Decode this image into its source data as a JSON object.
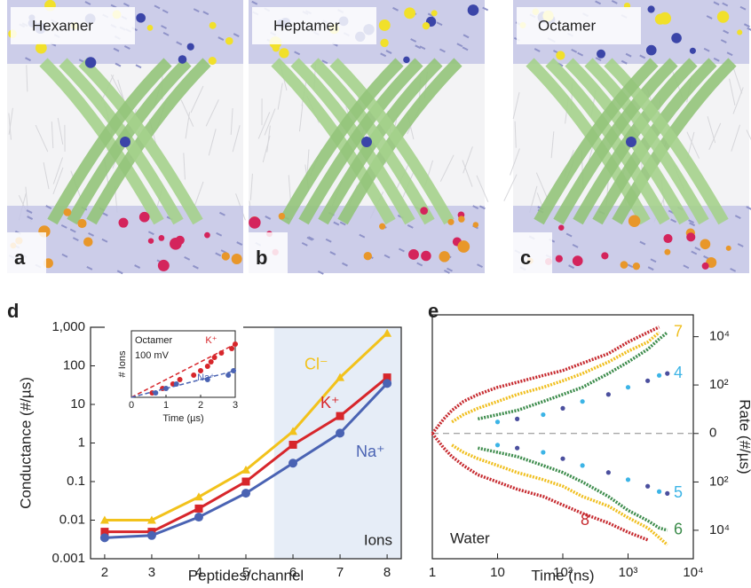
{
  "panels": [
    {
      "letter": "a",
      "label": "Hexamer"
    },
    {
      "letter": "b",
      "label": "Heptamer"
    },
    {
      "letter": "c",
      "label": "Octamer"
    }
  ],
  "chart_data": [
    {
      "type": "line",
      "panel_label": "d",
      "xlabel": "Peptides/channel",
      "ylabel": "Conductance (#/µs)",
      "x": [
        2,
        3,
        4,
        5,
        6,
        7,
        8
      ],
      "xlim": [
        1.7,
        8.3
      ],
      "xticks": [
        2,
        3,
        4,
        5,
        6,
        7,
        8
      ],
      "log_y": true,
      "ylim": [
        0.001,
        1000
      ],
      "yticks": [
        0.001,
        0.01,
        0.1,
        1,
        10,
        100,
        {
          "value": 1000,
          "label": "1,000"
        }
      ],
      "shade": {
        "from": 5.6,
        "label": "Ions",
        "color": "#e6edf7"
      },
      "series": [
        {
          "name": "Cl⁻",
          "color": "#f2c21b",
          "marker": "triangle",
          "values": [
            0.01,
            0.01,
            0.04,
            0.2,
            2,
            50,
            700
          ]
        },
        {
          "name": "K⁺",
          "color": "#d7262b",
          "marker": "square",
          "values": [
            0.005,
            0.005,
            0.02,
            0.1,
            0.9,
            5,
            50
          ]
        },
        {
          "name": "Na⁺",
          "color": "#4a63b3",
          "marker": "circle",
          "values": [
            0.0035,
            0.004,
            0.012,
            0.05,
            0.3,
            1.8,
            35
          ]
        }
      ]
    },
    {
      "type": "scatter",
      "title": [
        "Octamer",
        "100 mV"
      ],
      "xlabel": "Time (µs)",
      "ylabel": "# Ions",
      "xlim": [
        0,
        3
      ],
      "xticks": [
        0,
        1,
        2,
        3
      ],
      "ylim": [
        0,
        15
      ],
      "series": [
        {
          "name": "K⁺",
          "color": "#d7262b",
          "x": [
            0.6,
            0.9,
            1.2,
            1.4,
            1.8,
            2.0,
            2.2,
            2.3,
            2.4,
            2.6,
            2.9,
            3.0
          ],
          "y": [
            1,
            2,
            3,
            4,
            5,
            6,
            7,
            8,
            9,
            10,
            11,
            12
          ],
          "fit": {
            "x": [
              0,
              3
            ],
            "y": [
              0,
              12
            ]
          }
        },
        {
          "name": "Na⁺",
          "color": "#4a63b3",
          "x": [
            0.7,
            1.0,
            1.3,
            2.2,
            2.8,
            2.95
          ],
          "y": [
            1,
            2,
            3,
            4,
            5,
            6
          ],
          "fit": {
            "x": [
              0,
              3
            ],
            "y": [
              0,
              6
            ]
          }
        }
      ]
    },
    {
      "type": "line",
      "panel_label": "e",
      "xlabel": "Time (ns)",
      "ylabel": "Rate (#/µs)",
      "annotation": "Water",
      "log_x": true,
      "xlim": [
        1,
        10000
      ],
      "xticks": [
        1,
        10,
        {
          "value": 100,
          "label": "10²"
        },
        {
          "value": 1000,
          "label": "10³"
        },
        {
          "value": 10000,
          "label": "10⁴"
        }
      ],
      "yscale": "symlog",
      "ylim": [
        -150000,
        80000
      ],
      "yticks": [
        {
          "value": 10000,
          "label": "10⁴"
        },
        {
          "value": 100,
          "label": "10²"
        },
        0,
        {
          "value": -100,
          "label": "10²"
        },
        {
          "value": -10000,
          "label": "10⁴"
        }
      ],
      "x": [
        1,
        1.5,
        2,
        3,
        5,
        10,
        20,
        50,
        100,
        200,
        500,
        1000,
        2000,
        3000,
        4000
      ],
      "series": [
        {
          "name": "8",
          "color": "#c62a2f",
          "mode": "line",
          "label_branch": "lower",
          "upper": [
            0,
            3,
            8,
            20,
            40,
            80,
            130,
            250,
            400,
            800,
            2000,
            6000,
            15000,
            25000,
            null
          ],
          "lower": [
            0,
            -3,
            -8,
            -20,
            -50,
            -100,
            -200,
            -400,
            -900,
            -2000,
            -5000,
            -12000,
            -25000,
            null,
            null
          ]
        },
        {
          "name": "7",
          "color": "#f0bf1f",
          "mode": "line",
          "label_branch": "upper",
          "upper": [
            null,
            null,
            2,
            5,
            10,
            20,
            40,
            80,
            150,
            300,
            900,
            2500,
            6000,
            15000,
            null
          ],
          "lower": [
            null,
            null,
            -2,
            -5,
            -10,
            -20,
            -40,
            -80,
            -150,
            -400,
            -1000,
            -3000,
            -8000,
            -20000,
            -40000
          ]
        },
        {
          "name": "6",
          "color": "#3d8c4c",
          "mode": "line",
          "label_branch": "lower",
          "upper": [
            null,
            null,
            null,
            null,
            3,
            5,
            8,
            20,
            40,
            80,
            300,
            900,
            3000,
            8000,
            15000
          ],
          "lower": [
            null,
            null,
            null,
            null,
            -3,
            -5,
            -8,
            -20,
            -40,
            -100,
            -400,
            -1500,
            -4000,
            -8000,
            -10000
          ]
        },
        {
          "name": "4",
          "color": "#3cb4e6",
          "mode": "markers",
          "label_branch": "upper",
          "upper": [
            null,
            null,
            null,
            null,
            null,
            2,
            3,
            5,
            10,
            20,
            40,
            80,
            150,
            250,
            300
          ],
          "lower": [
            null,
            null,
            null,
            null,
            null,
            null,
            null,
            null,
            null,
            null,
            null,
            null,
            null,
            null,
            null
          ]
        },
        {
          "name": "5",
          "color": "#3cb4e6",
          "mode": "markers",
          "label_branch": "lower",
          "upper": [
            null,
            null,
            null,
            null,
            null,
            null,
            null,
            null,
            null,
            null,
            null,
            null,
            null,
            null,
            null
          ],
          "lower": [
            null,
            null,
            null,
            null,
            null,
            -2,
            -3,
            -5,
            -10,
            -20,
            -40,
            -80,
            -150,
            -250,
            -300
          ]
        }
      ]
    }
  ]
}
